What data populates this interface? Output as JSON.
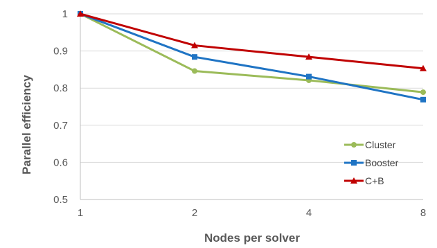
{
  "chart_data": {
    "type": "line",
    "xlabel": "Nodes per solver",
    "ylabel": "Parallel efficiency",
    "x": [
      1,
      2,
      4,
      8
    ],
    "x_scale": "log2",
    "x_tick_labels": [
      "1",
      "2",
      "4",
      "8"
    ],
    "ylim": [
      0.5,
      1.0
    ],
    "y_tick_labels": [
      "0.5",
      "0.6",
      "0.7",
      "0.8",
      "0.9",
      "1"
    ],
    "grid": true,
    "legend_position": "bottom-right",
    "series": [
      {
        "name": "Cluster",
        "values": [
          1.0,
          0.846,
          0.821,
          0.789
        ],
        "color": "#9BBB59",
        "marker": "circle"
      },
      {
        "name": "Booster",
        "values": [
          1.0,
          0.884,
          0.831,
          0.769
        ],
        "color": "#1F74C4",
        "marker": "square"
      },
      {
        "name": "C+B",
        "values": [
          1.0,
          0.915,
          0.884,
          0.853
        ],
        "color": "#C00000",
        "marker": "triangle"
      }
    ]
  },
  "colors": {
    "grid": "#D9D9D9",
    "axis": "#BFBFBF",
    "text": "#595959"
  }
}
